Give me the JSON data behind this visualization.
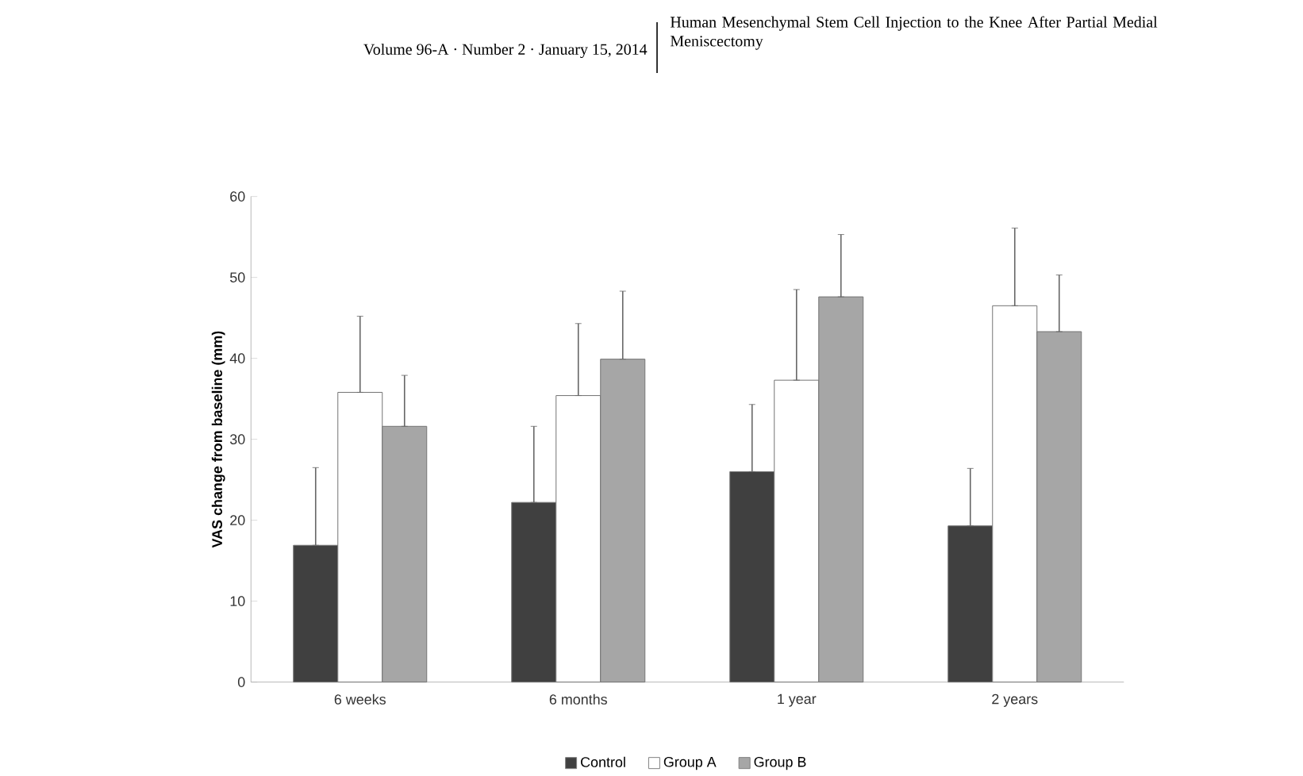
{
  "chart_data": {
    "type": "bar",
    "title": "Human Mesenchymal Stem Cell Injection to the Knee After Partial Medial Meniscectomy",
    "annotations": [
      "Volume 96-A · Number 2 · January 15, 2014"
    ],
    "ylabel": "VAS change from baseline (mm)",
    "categories": [
      "6 weeks",
      "6 months",
      "1 year",
      "2 years"
    ],
    "series": [
      {
        "name": "Control",
        "color": "#404040",
        "values": [
          16.9,
          22.2,
          26.0,
          19.3
        ],
        "errors": [
          [
            16.9,
            26.5
          ],
          [
            22.2,
            31.6
          ],
          [
            26.0,
            34.3
          ],
          [
            19.3,
            26.4
          ]
        ]
      },
      {
        "name": "Group A",
        "color": "#ffffff",
        "values": [
          35.8,
          35.4,
          37.3,
          46.5
        ],
        "errors": [
          [
            35.8,
            45.2
          ],
          [
            35.4,
            44.3
          ],
          [
            37.3,
            48.5
          ],
          [
            46.5,
            56.1
          ]
        ]
      },
      {
        "name": "Group B",
        "color": "#a6a6a6",
        "values": [
          31.6,
          39.9,
          47.6,
          43.3
        ],
        "errors": [
          [
            31.6,
            37.9
          ],
          [
            39.9,
            48.3
          ],
          [
            47.6,
            55.3
          ],
          [
            43.3,
            50.3
          ]
        ]
      }
    ],
    "ylim": [
      0,
      60
    ],
    "yticks": [
      0,
      10,
      20,
      30,
      40,
      50,
      60
    ],
    "grid": false,
    "legend": "bottom"
  }
}
